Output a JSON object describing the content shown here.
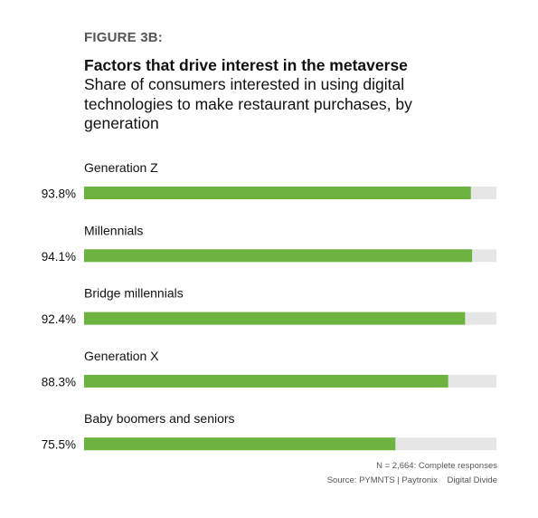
{
  "figure_label": "FIGURE 3B:",
  "footnote": "N = 2,664: Complete responses",
  "source": "Source: PYMNTS | Paytronix    Digital Divide",
  "chart_data": {
    "type": "bar",
    "orientation": "horizontal",
    "title": "Factors that drive interest in the metaverse",
    "subtitle": "Share of consumers interested in using digital technologies to make restaurant purchases, by generation",
    "categories": [
      "Generation Z",
      "Millennials",
      "Bridge millennials",
      "Generation X",
      "Baby boomers and seniors"
    ],
    "values": [
      93.8,
      94.1,
      92.4,
      88.3,
      75.5
    ],
    "value_labels": [
      "93.8%",
      "94.1%",
      "92.4%",
      "88.3%",
      "75.5%"
    ],
    "xlim": [
      0,
      100
    ],
    "grid": false,
    "legend": "none",
    "colors": {
      "bar": "#6db33f",
      "track": "#e6e6e6"
    }
  }
}
